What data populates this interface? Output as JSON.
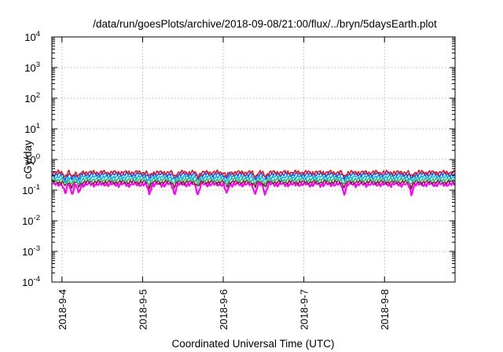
{
  "chart_data": {
    "type": "line",
    "title": "/data/run/goesPlots/archive/2018-09-08/21:00/flux/../bryn/5daysEarth.plot",
    "xlabel": "Coordinated Universal Time (UTC)",
    "ylabel": "cGy/day",
    "yscale": "log",
    "ylim": [
      0.0001,
      10000
    ],
    "xlim": [
      "2018-09-03T21:00",
      "2018-09-08T21:00"
    ],
    "grid": true,
    "legend": "none",
    "y_ticks": [
      {
        "base": "10",
        "exp": "-4"
      },
      {
        "base": "10",
        "exp": "-3"
      },
      {
        "base": "10",
        "exp": "-2"
      },
      {
        "base": "10",
        "exp": "-1"
      },
      {
        "base": "10",
        "exp": "0"
      },
      {
        "base": "10",
        "exp": "1"
      },
      {
        "base": "10",
        "exp": "2"
      },
      {
        "base": "10",
        "exp": "3"
      },
      {
        "base": "10",
        "exp": "4"
      }
    ],
    "x_ticks": [
      "2018-9-4",
      "2018-9-5",
      "2018-9-6",
      "2018-9-7",
      "2018-9-8"
    ],
    "series": [
      {
        "color": "#e8131a",
        "level": 0.38,
        "dips": false
      },
      {
        "color": "#1f51ff",
        "level": 0.33,
        "dips": false
      },
      {
        "color": "#00b8e8",
        "level": 0.27,
        "dips": false
      },
      {
        "color": "#22c27a",
        "level": 0.22,
        "dips": false
      },
      {
        "color": "#8a1a2a",
        "level": 0.185,
        "dips": false
      },
      {
        "color": "#ff00ff",
        "level": 0.155,
        "dips": true
      }
    ],
    "dip_times": [
      "2018-09-04T01:00",
      "2018-09-04T03:00",
      "2018-09-04T05:00",
      "2018-09-05T02:00",
      "2018-09-05T09:30",
      "2018-09-05T16:30",
      "2018-09-06T01:00",
      "2018-09-06T09:30",
      "2018-09-06T12:30",
      "2018-09-07T12:00",
      "2018-09-08T08:00"
    ]
  }
}
